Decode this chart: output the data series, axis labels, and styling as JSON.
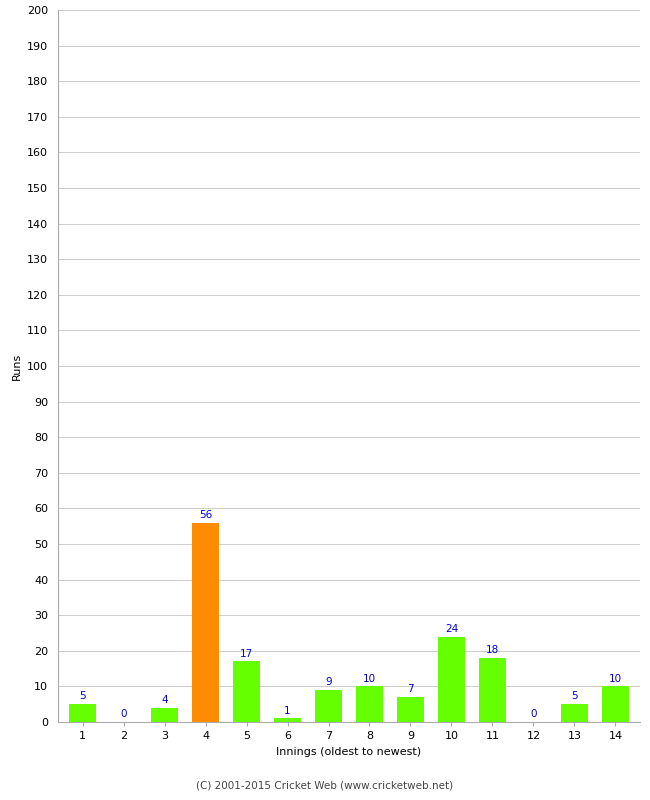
{
  "xlabel": "Innings (oldest to newest)",
  "ylabel": "Runs",
  "categories": [
    "1",
    "2",
    "3",
    "4",
    "5",
    "6",
    "7",
    "8",
    "9",
    "10",
    "11",
    "12",
    "13",
    "14"
  ],
  "values": [
    5,
    0,
    4,
    56,
    17,
    1,
    9,
    10,
    7,
    24,
    18,
    0,
    5,
    10
  ],
  "bar_colors": [
    "#66ff00",
    "#66ff00",
    "#66ff00",
    "#ff8c00",
    "#66ff00",
    "#66ff00",
    "#66ff00",
    "#66ff00",
    "#66ff00",
    "#66ff00",
    "#66ff00",
    "#66ff00",
    "#66ff00",
    "#66ff00"
  ],
  "ylim": [
    0,
    200
  ],
  "yticks": [
    0,
    10,
    20,
    30,
    40,
    50,
    60,
    70,
    80,
    90,
    100,
    110,
    120,
    130,
    140,
    150,
    160,
    170,
    180,
    190,
    200
  ],
  "label_color": "#0000cc",
  "label_fontsize": 7.5,
  "axis_fontsize": 8,
  "ylabel_fontsize": 8,
  "xlabel_fontsize": 8,
  "footer": "(C) 2001-2015 Cricket Web (www.cricketweb.net)",
  "footer_fontsize": 7.5,
  "background_color": "#ffffff",
  "grid_color": "#cccccc",
  "bar_width": 0.65
}
